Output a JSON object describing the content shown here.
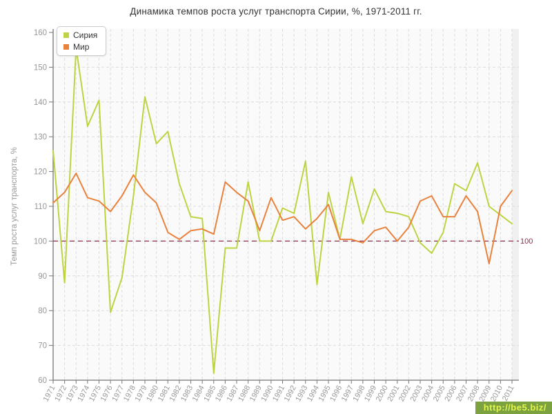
{
  "title": "Динамика темпов роста услуг транспорта Сирии, %, 1971-2011 гг.",
  "watermark": {
    "text": "http://be5.biz/",
    "bg": "#7ba23f",
    "color": "#e3f44f"
  },
  "colors": {
    "grid": "#dcdcdc",
    "axis": "#757575",
    "tick_label": "#979797",
    "axis_title": "#999999",
    "title": "#333333",
    "plot_bg": "#fafafa",
    "right_band": "#f0f0f0",
    "legend_border": "#cccccc"
  },
  "chart_data": {
    "type": "line",
    "title": "Динамика темпов роста услуг транспорта Сирии, %, 1971-2011 гг.",
    "xlabel": "",
    "ylabel": "Темп роста услуг транспорта, %",
    "ylim": [
      60,
      160
    ],
    "ytick_step": 10,
    "grid": "dashed",
    "legend_position": "top-left-inside",
    "guide": {
      "value": 100,
      "label": "100",
      "color": "#8e2b46"
    },
    "x": [
      1971,
      1972,
      1973,
      1974,
      1975,
      1976,
      1977,
      1978,
      1979,
      1980,
      1981,
      1982,
      1983,
      1984,
      1985,
      1986,
      1987,
      1988,
      1989,
      1990,
      1991,
      1992,
      1993,
      1994,
      1995,
      1996,
      1997,
      1998,
      1999,
      2000,
      2001,
      2002,
      2003,
      2004,
      2005,
      2006,
      2007,
      2008,
      2009,
      2010,
      2011
    ],
    "series": [
      {
        "name": "Сирия",
        "color": "#bfd341",
        "values": [
          126,
          88,
          155.5,
          133,
          140.5,
          79.5,
          89.5,
          113,
          141.5,
          128,
          131.5,
          116.5,
          107,
          106.5,
          62,
          98,
          98,
          117,
          100,
          100,
          109.5,
          108,
          123,
          87.5,
          114,
          100.5,
          118.5,
          105,
          115,
          108.5,
          108,
          107,
          99.5,
          96.5,
          102.5,
          116.5,
          114.5,
          122.5,
          110,
          107.5,
          105
        ]
      },
      {
        "name": "Мир",
        "color": "#e8823c",
        "values": [
          111,
          114,
          119.5,
          112.5,
          111.5,
          108.5,
          113,
          119,
          114,
          111,
          102.5,
          100.5,
          103,
          103.5,
          102,
          117,
          114,
          111.5,
          103,
          112.5,
          106,
          107,
          103.5,
          106.5,
          110.5,
          100.5,
          100.5,
          99.5,
          103,
          104,
          100,
          104,
          111.5,
          113,
          107,
          107,
          113,
          108.5,
          93.5,
          110,
          114.5
        ]
      }
    ]
  }
}
